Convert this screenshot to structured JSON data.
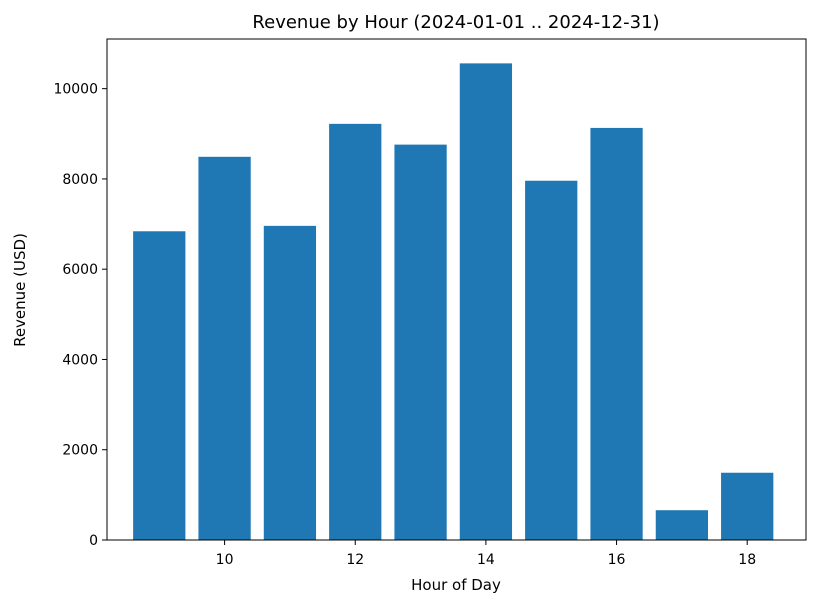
{
  "chart_data": {
    "type": "bar",
    "title": "Revenue by Hour (2024-01-01 .. 2024-12-31)",
    "xlabel": "Hour of Day",
    "ylabel": "Revenue (USD)",
    "x": [
      9,
      10,
      11,
      12,
      13,
      14,
      15,
      16,
      17,
      18
    ],
    "values": [
      6840,
      8490,
      6960,
      9220,
      8760,
      10560,
      7960,
      9130,
      660,
      1490
    ],
    "xlim": [
      8.2,
      18.9
    ],
    "ylim": [
      0,
      11100
    ],
    "xticks": [
      10,
      12,
      14,
      16,
      18
    ],
    "yticks": [
      0,
      2000,
      4000,
      6000,
      8000,
      10000
    ],
    "bar_color": "#1f77b4",
    "grid": false
  }
}
